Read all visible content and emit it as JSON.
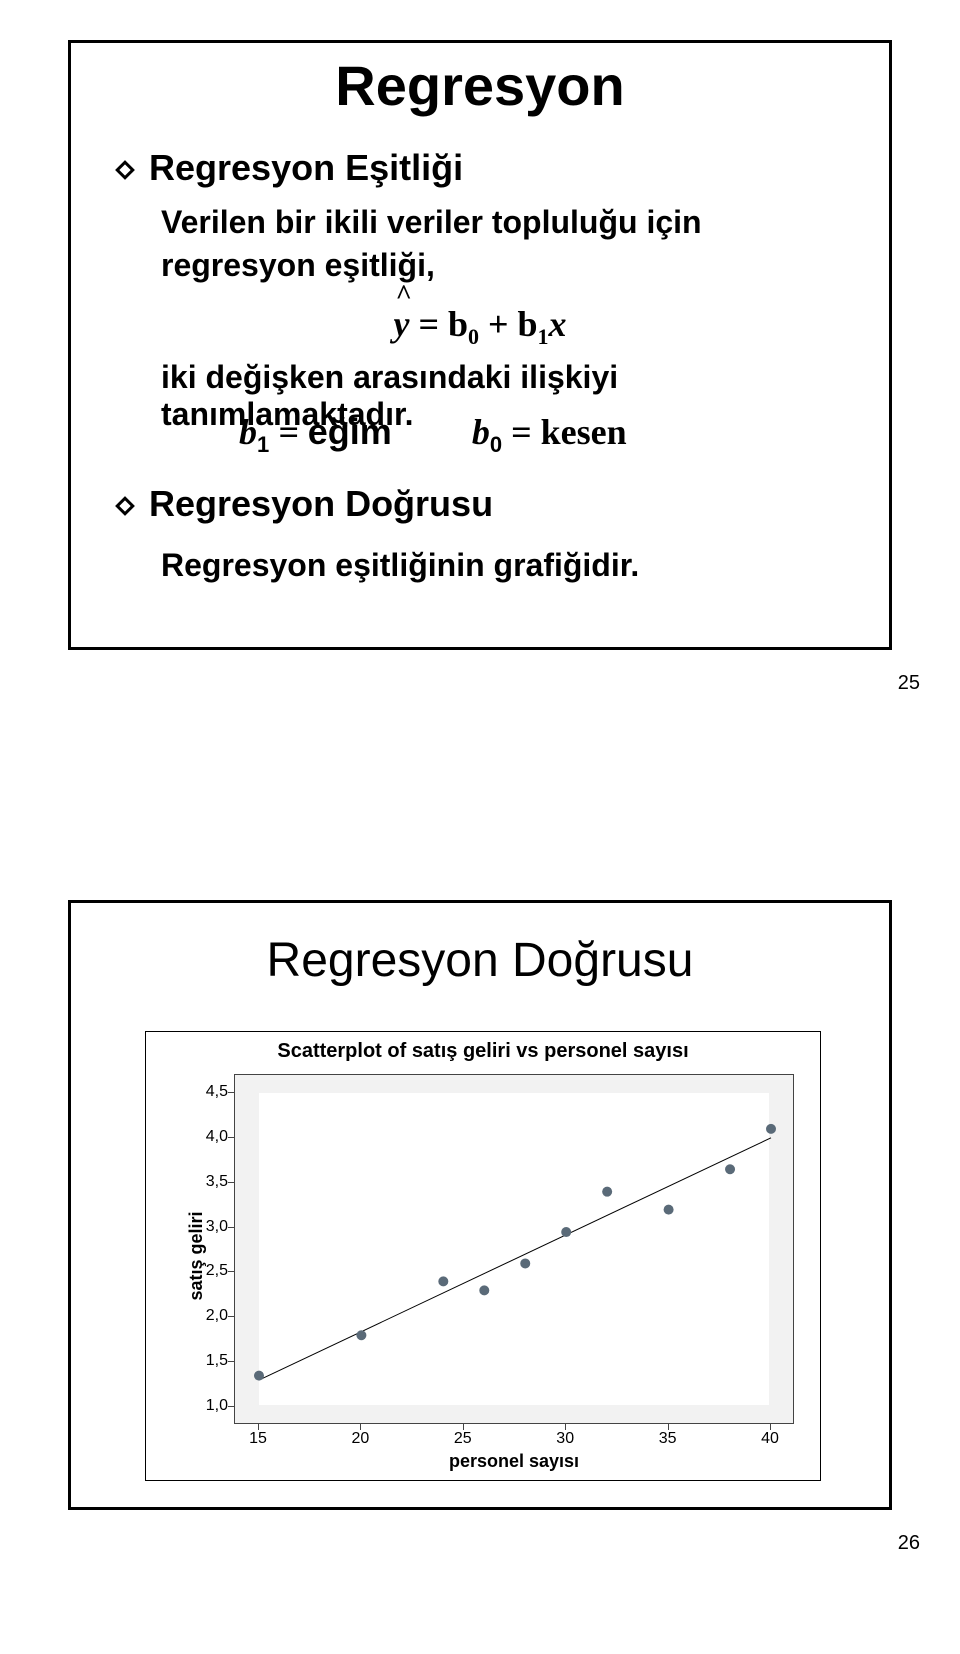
{
  "slide1": {
    "title": "Regresyon",
    "bullet1_heading": "Regresyon Eşitliği",
    "para1": "Verilen bir ikili veriler topluluğu için regresyon eşitliği,",
    "equation": {
      "yhat": "y",
      "eq": " = b",
      "sub0a": "0",
      "plus": " + b",
      "sub1": "1",
      "x": "x"
    },
    "para2": "iki değişken arasındaki ilişkiyi tanımlamaktadır.",
    "slope_part": {
      "b1_sym": "b",
      "b1_sub": "1",
      "b1_eq": " = ",
      "b1_lbl": "eğim",
      "gap": "      ",
      "b0_sym": "b",
      "b0_sub": "0",
      "b0_eq": " = ",
      "b0_lbl": "kesen"
    },
    "bullet2_heading": "Regresyon Doğrusu",
    "para3": "Regresyon eşitliğinin grafiğidir.",
    "page_num": "25"
  },
  "slide2": {
    "title": "Regresyon Doğrusu",
    "page_num": "26",
    "chart": {
      "type": "scatter",
      "title": "Scatterplot of satış geliri vs personel sayısı",
      "xlabel": "personel sayısı",
      "ylabel": "satış geliri",
      "xlim": [
        15,
        40
      ],
      "ylim": [
        1.0,
        4.5
      ],
      "xticks": [
        15,
        20,
        25,
        30,
        35,
        40
      ],
      "yticks": [
        1.0,
        1.5,
        2.0,
        2.5,
        3.0,
        3.5,
        4.0,
        4.5
      ],
      "ytick_labels": [
        "1,0",
        "1,5",
        "2,0",
        "2,5",
        "3,0",
        "3,5",
        "4,0",
        "4,5"
      ],
      "points": [
        {
          "x": 15,
          "y": 1.35
        },
        {
          "x": 20,
          "y": 1.8
        },
        {
          "x": 24,
          "y": 2.4
        },
        {
          "x": 26,
          "y": 2.3
        },
        {
          "x": 28,
          "y": 2.6
        },
        {
          "x": 30,
          "y": 2.95
        },
        {
          "x": 32,
          "y": 3.4
        },
        {
          "x": 35,
          "y": 3.2
        },
        {
          "x": 38,
          "y": 3.65
        },
        {
          "x": 40,
          "y": 4.1
        }
      ],
      "regression_line": {
        "x1": 15,
        "y1": 1.3,
        "x2": 40,
        "y2": 4.0
      },
      "point_color": "#5a6a78",
      "point_radius": 5,
      "line_color": "#000000",
      "line_width": 1,
      "background_color": "#f2f2f2",
      "inner_color": "#ffffff",
      "border_color": "#444444",
      "title_fontsize": 20,
      "label_fontsize": 18,
      "tick_fontsize": 16
    }
  }
}
